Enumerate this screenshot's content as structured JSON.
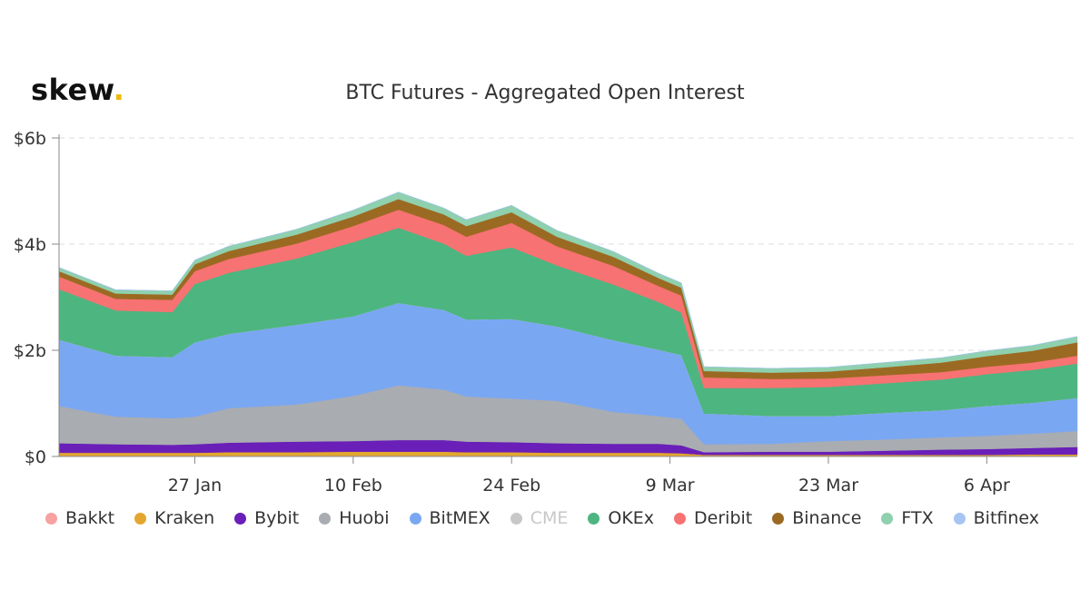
{
  "brand": {
    "name": "skew",
    "dot": "."
  },
  "chart_data": {
    "type": "area",
    "title": "BTC Futures - Aggregated Open Interest",
    "stacked": true,
    "y_ticks": [
      "$0",
      "$2b",
      "$4b",
      "$6b"
    ],
    "ylim": [
      0,
      6
    ],
    "y_unit": "billion USD",
    "x_ticks": [
      "27 Jan",
      "10 Feb",
      "24 Feb",
      "9 Mar",
      "23 Mar",
      "6 Apr"
    ],
    "x_range": [
      "2020-01-15",
      "2020-04-14"
    ],
    "grid": true,
    "legend_position": "bottom",
    "x": [
      "2020-01-15",
      "2020-01-20",
      "2020-01-25",
      "2020-01-27",
      "2020-01-30",
      "2020-02-05",
      "2020-02-10",
      "2020-02-14",
      "2020-02-18",
      "2020-02-20",
      "2020-02-24",
      "2020-02-28",
      "2020-03-04",
      "2020-03-08",
      "2020-03-10",
      "2020-03-12",
      "2020-03-18",
      "2020-03-23",
      "2020-03-28",
      "2020-04-02",
      "2020-04-06",
      "2020-04-10",
      "2020-04-14"
    ],
    "series": [
      {
        "name": "Bakkt",
        "color": "#f7a1a1",
        "values": [
          0.01,
          0.01,
          0.01,
          0.01,
          0.01,
          0.01,
          0.01,
          0.01,
          0.01,
          0.01,
          0.01,
          0.01,
          0.01,
          0.01,
          0.01,
          0.01,
          0.01,
          0.01,
          0.01,
          0.01,
          0.01,
          0.01,
          0.01
        ]
      },
      {
        "name": "Kraken",
        "color": "#e3a72f",
        "values": [
          0.06,
          0.06,
          0.06,
          0.06,
          0.07,
          0.07,
          0.08,
          0.08,
          0.08,
          0.07,
          0.07,
          0.06,
          0.06,
          0.06,
          0.05,
          0.02,
          0.02,
          0.02,
          0.02,
          0.02,
          0.02,
          0.03,
          0.03
        ]
      },
      {
        "name": "Bybit",
        "color": "#6a1fb8",
        "values": [
          0.18,
          0.16,
          0.15,
          0.16,
          0.18,
          0.2,
          0.2,
          0.22,
          0.22,
          0.2,
          0.19,
          0.18,
          0.17,
          0.17,
          0.15,
          0.05,
          0.06,
          0.06,
          0.08,
          0.1,
          0.11,
          0.12,
          0.14
        ]
      },
      {
        "name": "Huobi",
        "color": "#a9acb1",
        "values": [
          0.7,
          0.52,
          0.5,
          0.52,
          0.65,
          0.7,
          0.85,
          1.03,
          0.95,
          0.85,
          0.82,
          0.8,
          0.6,
          0.52,
          0.5,
          0.15,
          0.15,
          0.2,
          0.21,
          0.23,
          0.25,
          0.27,
          0.3
        ]
      },
      {
        "name": "BitMEX",
        "color": "#7aa7f2",
        "values": [
          1.25,
          1.15,
          1.15,
          1.4,
          1.4,
          1.5,
          1.5,
          1.55,
          1.5,
          1.45,
          1.5,
          1.4,
          1.35,
          1.25,
          1.2,
          0.58,
          0.52,
          0.47,
          0.5,
          0.51,
          0.56,
          0.58,
          0.62
        ]
      },
      {
        "name": "CME",
        "color": "#d4d4d4",
        "values": [
          0,
          0,
          0,
          0,
          0,
          0,
          0,
          0,
          0,
          0,
          0,
          0,
          0,
          0,
          0,
          0,
          0,
          0,
          0,
          0,
          0,
          0,
          0
        ]
      },
      {
        "name": "OKEx",
        "color": "#4db580",
        "values": [
          0.95,
          0.85,
          0.85,
          1.1,
          1.15,
          1.25,
          1.4,
          1.42,
          1.25,
          1.2,
          1.35,
          1.15,
          1.05,
          0.9,
          0.8,
          0.48,
          0.53,
          0.55,
          0.56,
          0.58,
          0.6,
          0.62,
          0.65
        ]
      },
      {
        "name": "Deribit",
        "color": "#f77272",
        "values": [
          0.24,
          0.22,
          0.23,
          0.24,
          0.26,
          0.28,
          0.3,
          0.34,
          0.35,
          0.36,
          0.46,
          0.36,
          0.35,
          0.3,
          0.32,
          0.2,
          0.17,
          0.16,
          0.15,
          0.14,
          0.14,
          0.14,
          0.15
        ]
      },
      {
        "name": "Binance",
        "color": "#9b6a22",
        "values": [
          0.1,
          0.1,
          0.1,
          0.13,
          0.15,
          0.17,
          0.18,
          0.2,
          0.2,
          0.2,
          0.2,
          0.18,
          0.17,
          0.15,
          0.15,
          0.12,
          0.12,
          0.13,
          0.15,
          0.18,
          0.2,
          0.22,
          0.25
        ]
      },
      {
        "name": "FTX",
        "color": "#8fd0ae",
        "values": [
          0.07,
          0.07,
          0.07,
          0.08,
          0.09,
          0.1,
          0.12,
          0.13,
          0.12,
          0.12,
          0.13,
          0.12,
          0.1,
          0.09,
          0.09,
          0.08,
          0.08,
          0.08,
          0.09,
          0.09,
          0.1,
          0.1,
          0.11
        ]
      },
      {
        "name": "Bitfinex",
        "color": "#a6c5f3",
        "values": [
          0,
          0,
          0,
          0,
          0,
          0,
          0,
          0,
          0,
          0,
          0,
          0,
          0,
          0,
          0,
          0,
          0,
          0,
          0,
          0,
          0,
          0,
          0
        ]
      }
    ],
    "muted_series": [
      "CME"
    ]
  }
}
